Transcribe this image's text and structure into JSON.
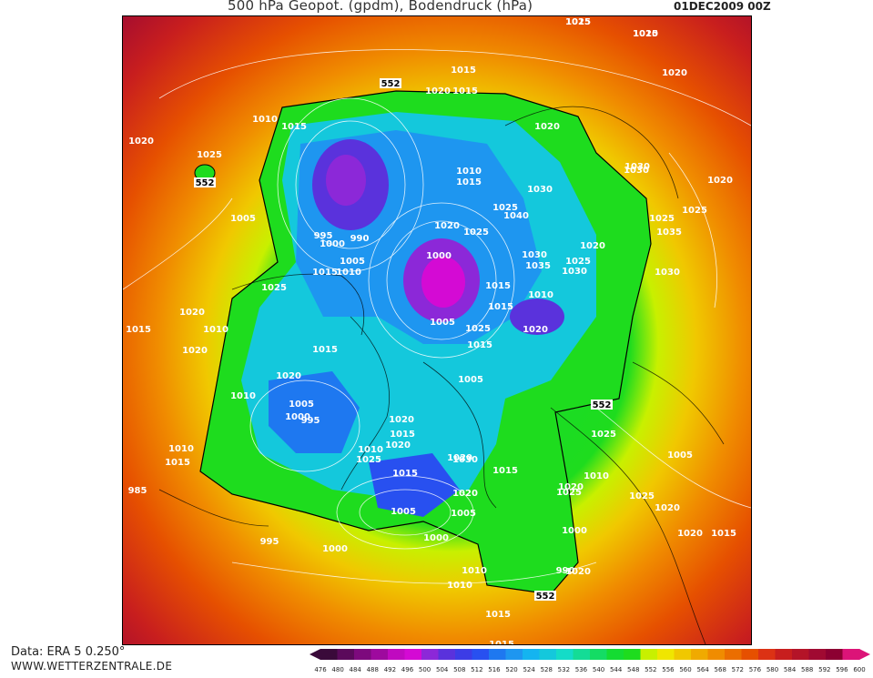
{
  "header": {
    "title": "500 hPa Geopot. (gpdm), Bodendruck (hPa)",
    "datetime": "01DEC2009 00Z"
  },
  "footer": {
    "data_source": "Data: ERA 5 0.250°",
    "website": "WWW.WETTERZENTRALE.DE"
  },
  "colorbar": {
    "levels": [
      "476",
      "480",
      "484",
      "488",
      "492",
      "496",
      "500",
      "504",
      "508",
      "512",
      "516",
      "520",
      "524",
      "528",
      "532",
      "536",
      "540",
      "544",
      "548",
      "552",
      "556",
      "560",
      "564",
      "568",
      "572",
      "576",
      "580",
      "584",
      "588",
      "592",
      "596",
      "600"
    ],
    "colors": [
      "#3a0a3a",
      "#5b0a5b",
      "#7d0a7d",
      "#9e0a9e",
      "#c00ac0",
      "#d40ad4",
      "#8c28d8",
      "#5a32dc",
      "#3c3ce6",
      "#2850f0",
      "#1e78f0",
      "#1e96f0",
      "#14b4f0",
      "#14c8dc",
      "#14dcc8",
      "#14dc96",
      "#14dc64",
      "#14dc32",
      "#1edc1e",
      "#c8f000",
      "#f0e600",
      "#f0c800",
      "#f0aa00",
      "#f08c00",
      "#eb6e00",
      "#e65000",
      "#dc3214",
      "#c81e1e",
      "#b41428",
      "#a00a32",
      "#8c0032",
      "#dc1478"
    ]
  },
  "map": {
    "contour_552_labels": [
      "552",
      "552",
      "552",
      "552"
    ],
    "pressure_labels": [
      "1015",
      "1020",
      "1015",
      "1020",
      "1015",
      "1020",
      "1025",
      "1020",
      "1005",
      "1010",
      "1015",
      "1020",
      "1025",
      "1030",
      "1040",
      "1010",
      "1015",
      "1020",
      "1025",
      "1030",
      "1035",
      "1030",
      "1025",
      "1020",
      "1030",
      "1025",
      "1035",
      "1030",
      "1030",
      "1025",
      "1020",
      "995",
      "1000",
      "990",
      "1000",
      "1005",
      "1010",
      "1015",
      "1025",
      "1015",
      "1010",
      "1015",
      "1020",
      "1010",
      "1020",
      "1005",
      "1015",
      "1020",
      "1025",
      "1015",
      "1005",
      "1015",
      "1020",
      "1010",
      "1005",
      "1000",
      "995",
      "1020",
      "1015",
      "1020",
      "1010",
      "1015",
      "1010",
      "1025",
      "1030",
      "1020",
      "1015",
      "1025",
      "1020",
      "1025",
      "1020",
      "1015",
      "1005",
      "1000",
      "1005",
      "1010",
      "990",
      "985",
      "995",
      "1000",
      "1010",
      "1015",
      "1020",
      "1015",
      "1020",
      "1025",
      "1005",
      "1000",
      "1010",
      "1015",
      "1020",
      "1025",
      "1015"
    ]
  }
}
